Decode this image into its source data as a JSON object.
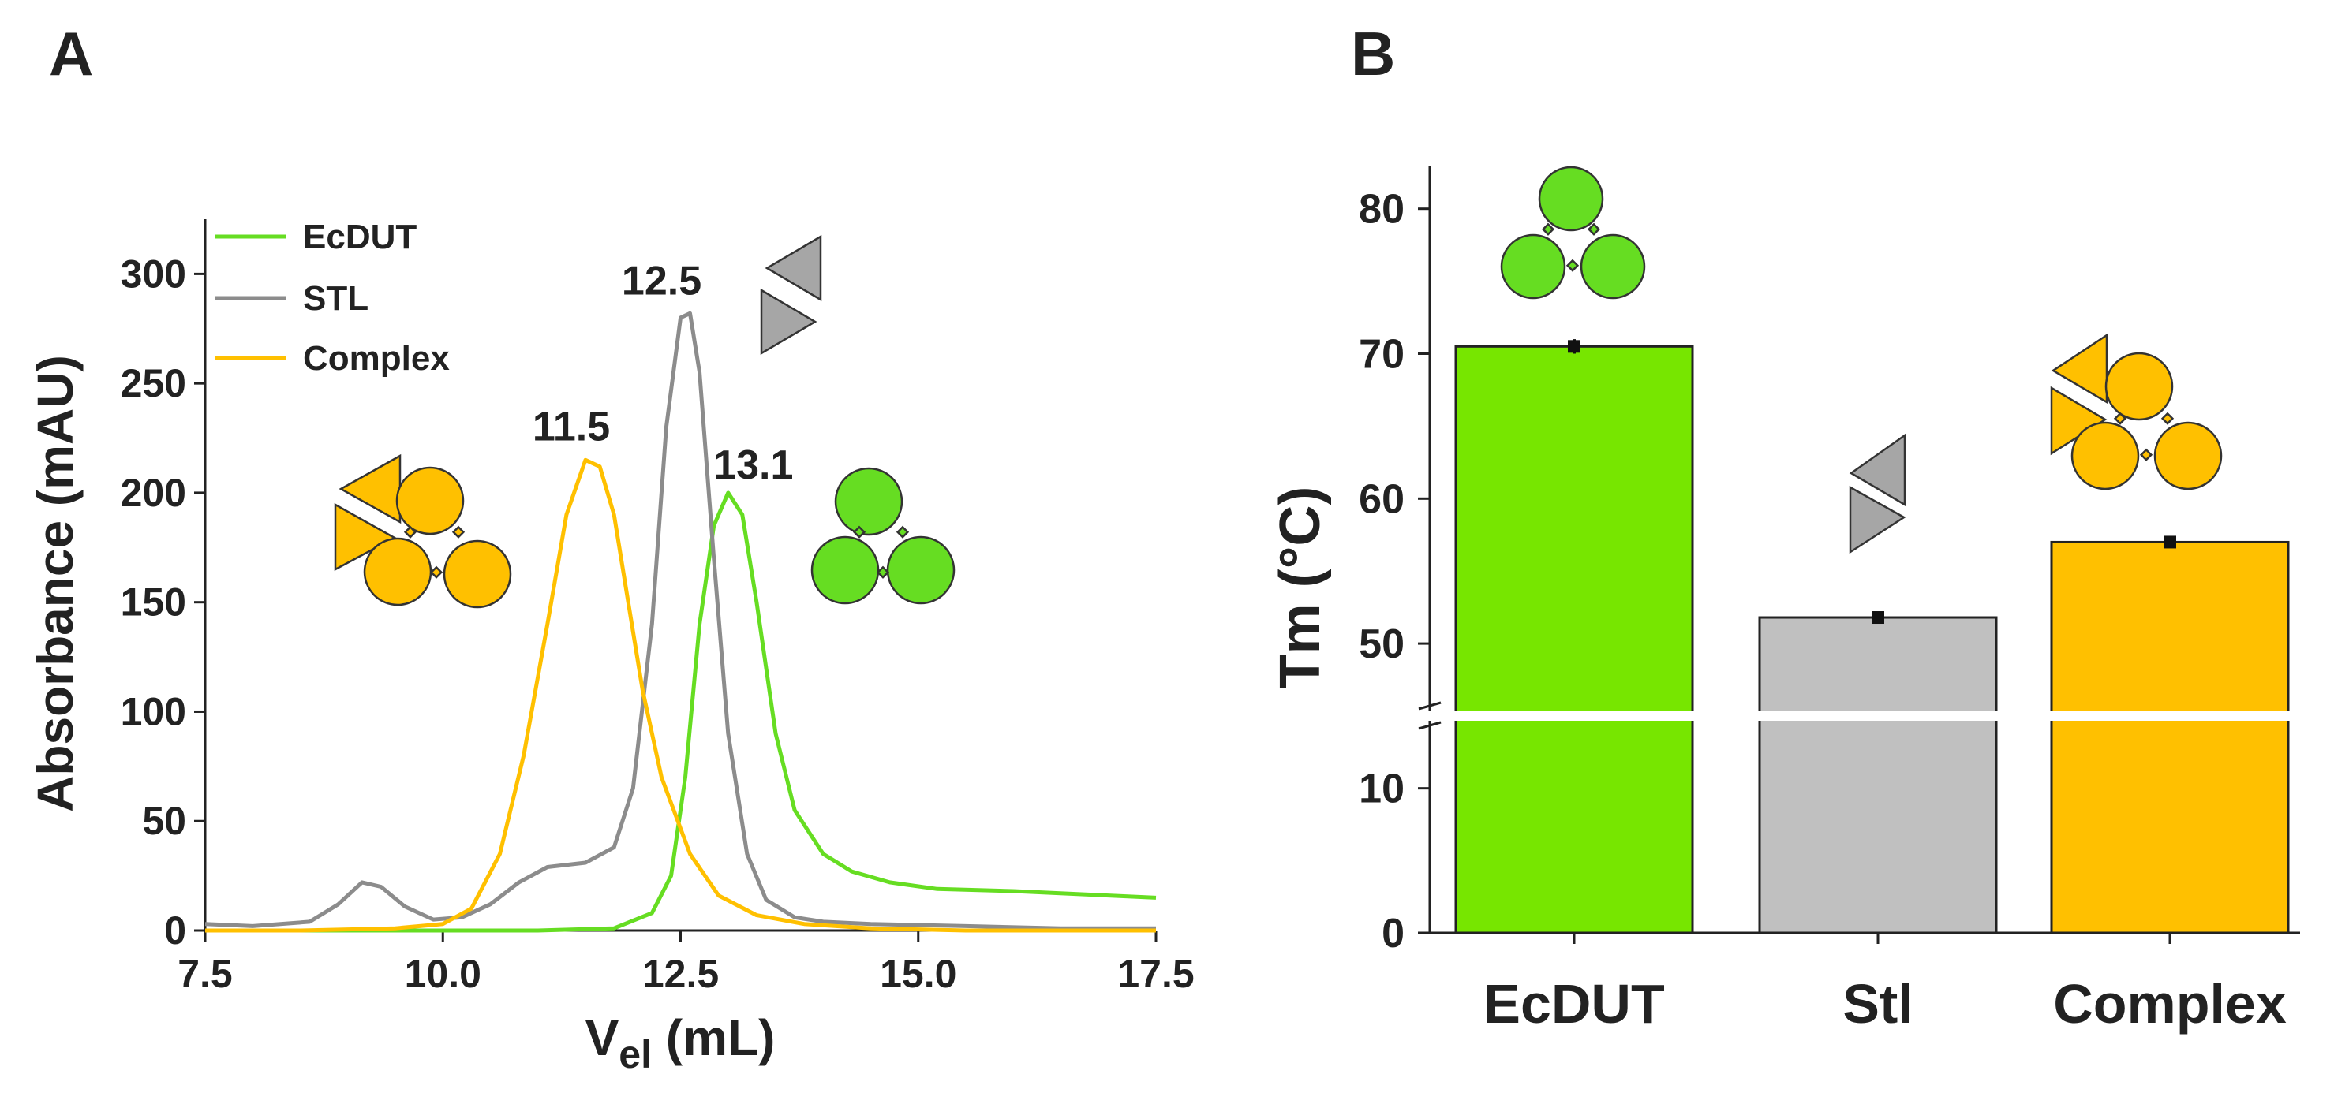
{
  "chart_data": [
    {
      "type": "line",
      "panel_label": "A",
      "xlabel_main": "V",
      "xlabel_sub": "el",
      "xlabel_unit": " (mL)",
      "ylabel": "Absorbance (mAU)",
      "xlim": [
        7.5,
        17.5
      ],
      "ylim": [
        0,
        325
      ],
      "x_ticks": [
        7.5,
        10.0,
        12.5,
        15.0,
        17.5
      ],
      "x_tick_labels": [
        "7.5",
        "10.0",
        "12.5",
        "15.0",
        "17.5"
      ],
      "y_ticks": [
        0,
        50,
        100,
        150,
        200,
        250,
        300
      ],
      "y_tick_labels": [
        "0",
        "50",
        "100",
        "150",
        "200",
        "250",
        "300"
      ],
      "series": [
        {
          "name": "EcDUT",
          "color": "#66dd22",
          "points": [
            [
              7.5,
              0
            ],
            [
              11.0,
              0
            ],
            [
              11.8,
              1
            ],
            [
              12.2,
              8
            ],
            [
              12.4,
              25
            ],
            [
              12.55,
              70
            ],
            [
              12.7,
              140
            ],
            [
              12.85,
              185
            ],
            [
              13.0,
              200
            ],
            [
              13.15,
              190
            ],
            [
              13.3,
              150
            ],
            [
              13.5,
              90
            ],
            [
              13.7,
              55
            ],
            [
              14.0,
              35
            ],
            [
              14.3,
              27
            ],
            [
              14.7,
              22
            ],
            [
              15.2,
              19
            ],
            [
              16.0,
              18
            ],
            [
              17.0,
              16
            ],
            [
              17.5,
              15
            ]
          ]
        },
        {
          "name": "STL",
          "color": "#8c8c8c",
          "points": [
            [
              7.5,
              3
            ],
            [
              8.0,
              2
            ],
            [
              8.6,
              4
            ],
            [
              8.9,
              12
            ],
            [
              9.15,
              22
            ],
            [
              9.35,
              20
            ],
            [
              9.6,
              11
            ],
            [
              9.9,
              5
            ],
            [
              10.2,
              6
            ],
            [
              10.5,
              12
            ],
            [
              10.8,
              22
            ],
            [
              11.1,
              29
            ],
            [
              11.5,
              31
            ],
            [
              11.8,
              38
            ],
            [
              12.0,
              65
            ],
            [
              12.2,
              140
            ],
            [
              12.35,
              230
            ],
            [
              12.5,
              280
            ],
            [
              12.6,
              282
            ],
            [
              12.7,
              255
            ],
            [
              12.85,
              170
            ],
            [
              13.0,
              90
            ],
            [
              13.2,
              35
            ],
            [
              13.4,
              14
            ],
            [
              13.7,
              6
            ],
            [
              14.0,
              4
            ],
            [
              14.5,
              3
            ],
            [
              15.5,
              2
            ],
            [
              16.5,
              1
            ],
            [
              17.5,
              1
            ]
          ]
        },
        {
          "name": "Complex",
          "color": "#ffc000",
          "points": [
            [
              7.5,
              0
            ],
            [
              8.5,
              0
            ],
            [
              9.5,
              1
            ],
            [
              10.0,
              3
            ],
            [
              10.3,
              10
            ],
            [
              10.6,
              35
            ],
            [
              10.85,
              80
            ],
            [
              11.1,
              140
            ],
            [
              11.3,
              190
            ],
            [
              11.5,
              215
            ],
            [
              11.65,
              212
            ],
            [
              11.8,
              190
            ],
            [
              11.95,
              150
            ],
            [
              12.1,
              110
            ],
            [
              12.3,
              70
            ],
            [
              12.6,
              35
            ],
            [
              12.9,
              16
            ],
            [
              13.3,
              7
            ],
            [
              13.8,
              3
            ],
            [
              14.5,
              1
            ],
            [
              15.5,
              0
            ],
            [
              17.5,
              0
            ]
          ]
        }
      ],
      "legend": {
        "position": "top-left",
        "entries": [
          "EcDUT",
          "STL",
          "Complex"
        ]
      },
      "annotations": [
        {
          "text": "11.5",
          "x": 11.5,
          "y": 215
        },
        {
          "text": "12.5",
          "x": 12.55,
          "y": 282
        },
        {
          "text": "13.1",
          "x": 13.1,
          "y": 200
        }
      ]
    },
    {
      "type": "bar",
      "panel_label": "B",
      "ylabel": "Tm (°C)",
      "categories": [
        "EcDUT",
        "Stl",
        "Complex"
      ],
      "values": [
        70.5,
        51.8,
        57.0
      ],
      "errors": [
        0.5,
        0.4,
        0.4
      ],
      "colors": [
        "#77e600",
        "#c0c0c0",
        "#ffc000"
      ],
      "y_axis_break": {
        "lower_range": [
          0,
          15
        ],
        "upper_range": [
          45,
          85
        ]
      },
      "y_ticks": [
        0,
        10,
        50,
        60,
        70,
        80
      ],
      "y_tick_labels": [
        "0",
        "10",
        "50",
        "60",
        "70",
        "80"
      ]
    }
  ]
}
